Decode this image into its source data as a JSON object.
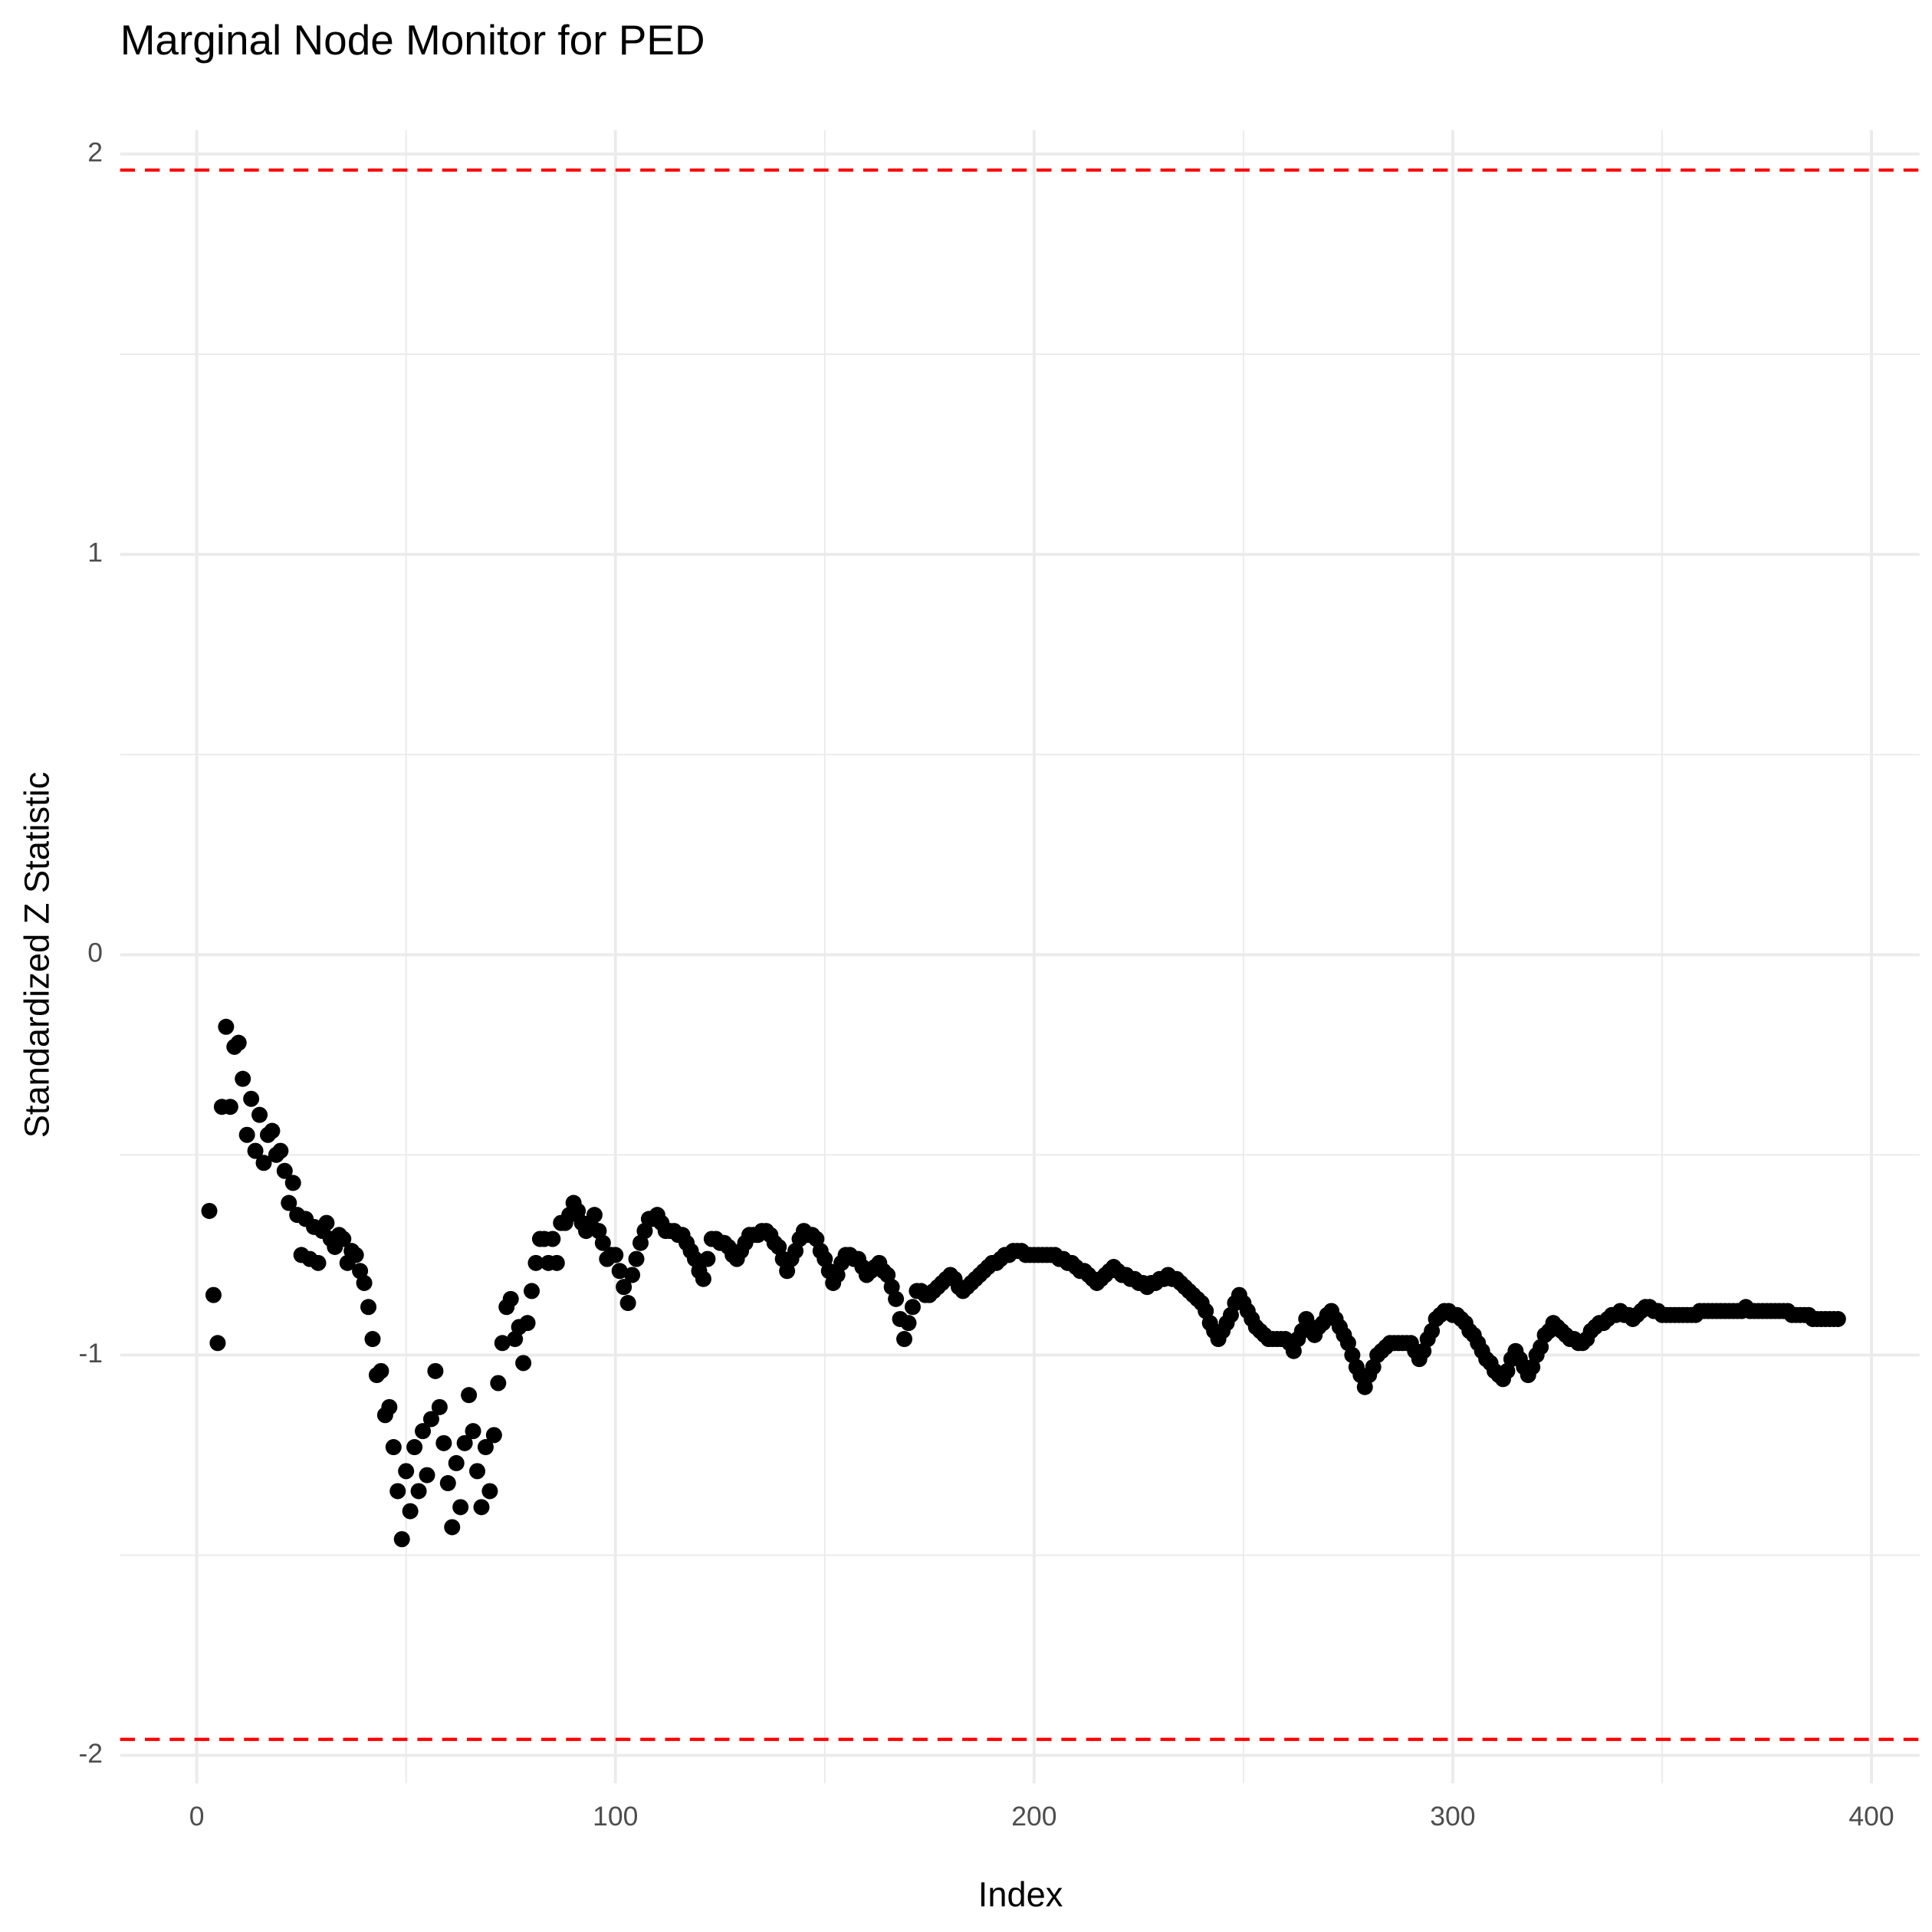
{
  "chart_data": {
    "type": "scatter",
    "title": "Marginal Node Monitor for PED",
    "x_label": "Index",
    "y_label": "Standardized Z Statistic",
    "xlim": [
      -18.3,
      411.5
    ],
    "ylim": [
      -2.07,
      2.06
    ],
    "xticks": [
      0,
      100,
      200,
      300,
      400
    ],
    "yticks": [
      -2,
      -1,
      0,
      1,
      2
    ],
    "grid": true,
    "color": "#000000",
    "reference_lines": [
      1.96,
      -1.96
    ],
    "reference_color": "#ff0000",
    "x": [
      3,
      4,
      5,
      6,
      7,
      8,
      9,
      10,
      11,
      12,
      13,
      14,
      15,
      16,
      17,
      18,
      19,
      20,
      21,
      22,
      23,
      24,
      25,
      26,
      27,
      28,
      29,
      30,
      31,
      32,
      33,
      34,
      35,
      36,
      37,
      38,
      39,
      40,
      41,
      42,
      43,
      44,
      45,
      46,
      47,
      48,
      49,
      50,
      51,
      52,
      53,
      54,
      55,
      56,
      57,
      58,
      59,
      60,
      61,
      62,
      63,
      64,
      65,
      66,
      67,
      68,
      69,
      70,
      71,
      72,
      73,
      74,
      75,
      76,
      77,
      78,
      79,
      80,
      81,
      82,
      83,
      84,
      85,
      86,
      87,
      88,
      89,
      90,
      91,
      92,
      93,
      94,
      95,
      96,
      97,
      98,
      99,
      100,
      101,
      102,
      103,
      104,
      105,
      106,
      107,
      108,
      109,
      110,
      111,
      112,
      113,
      114,
      115,
      116,
      117,
      118,
      119,
      120,
      121,
      122,
      123,
      124,
      125,
      126,
      127,
      128,
      129,
      130,
      131,
      132,
      133,
      134,
      135,
      136,
      137,
      138,
      139,
      140,
      141,
      142,
      143,
      144,
      145,
      146,
      147,
      148,
      149,
      150,
      151,
      152,
      153,
      154,
      155,
      156,
      157,
      158,
      159,
      160,
      161,
      162,
      163,
      164,
      165,
      166,
      167,
      168,
      169,
      170,
      171,
      172,
      173,
      174,
      175,
      176,
      177,
      178,
      179,
      180,
      181,
      182,
      183,
      184,
      185,
      186,
      187,
      188,
      189,
      190,
      191,
      192,
      193,
      194,
      195,
      196,
      197,
      198,
      199,
      200,
      201,
      202,
      203,
      204,
      205,
      206,
      207,
      208,
      209,
      210,
      211,
      212,
      213,
      214,
      215,
      216,
      217,
      218,
      219,
      220,
      221,
      222,
      223,
      224,
      225,
      226,
      227,
      228,
      229,
      230,
      231,
      232,
      233,
      234,
      235,
      236,
      237,
      238,
      239,
      240,
      241,
      242,
      243,
      244,
      245,
      246,
      247,
      248,
      249,
      250,
      251,
      252,
      253,
      254,
      255,
      256,
      257,
      258,
      259,
      260,
      261,
      262,
      263,
      264,
      265,
      266,
      267,
      268,
      269,
      270,
      271,
      272,
      273,
      274,
      275,
      276,
      277,
      278,
      279,
      280,
      281,
      282,
      283,
      284,
      285,
      286,
      287,
      288,
      289,
      290,
      291,
      292,
      293,
      294,
      295,
      296,
      297,
      298,
      299,
      300,
      301,
      302,
      303,
      304,
      305,
      306,
      307,
      308,
      309,
      310,
      311,
      312,
      313,
      314,
      315,
      316,
      317,
      318,
      319,
      320,
      321,
      322,
      323,
      324,
      325,
      326,
      327,
      328,
      329,
      330,
      331,
      332,
      333,
      334,
      335,
      336,
      337,
      338,
      339,
      340,
      341,
      342,
      343,
      344,
      345,
      346,
      347,
      348,
      349,
      350,
      351,
      352,
      353,
      354,
      355,
      356,
      357,
      358,
      359,
      360,
      361,
      362,
      363,
      364,
      365,
      366,
      367,
      368,
      369,
      370,
      371,
      372,
      373,
      374,
      375,
      376,
      377,
      378,
      379,
      380,
      381,
      382,
      383,
      384,
      385,
      386,
      387,
      388,
      389,
      390,
      391,
      392
    ],
    "values": [
      -0.64,
      -0.85,
      -0.97,
      -0.38,
      -0.18,
      -0.38,
      -0.23,
      -0.22,
      -0.31,
      -0.45,
      -0.36,
      -0.49,
      -0.4,
      -0.52,
      -0.45,
      -0.44,
      -0.5,
      -0.49,
      -0.54,
      -0.62,
      -0.57,
      -0.65,
      -0.75,
      -0.66,
      -0.76,
      -0.68,
      -0.77,
      -0.69,
      -0.67,
      -0.71,
      -0.73,
      -0.7,
      -0.71,
      -0.77,
      -0.74,
      -0.75,
      -0.79,
      -0.82,
      -0.88,
      -0.96,
      -1.05,
      -1.04,
      -1.15,
      -1.13,
      -1.23,
      -1.34,
      -1.46,
      -1.29,
      -1.39,
      -1.23,
      -1.34,
      -1.19,
      -1.3,
      -1.16,
      -1.04,
      -1.13,
      -1.22,
      -1.32,
      -1.43,
      -1.27,
      -1.38,
      -1.22,
      -1.1,
      -1.19,
      -1.29,
      -1.38,
      -1.23,
      -1.34,
      -1.2,
      -1.07,
      -0.97,
      -0.88,
      -0.86,
      -0.96,
      -0.93,
      -1.02,
      -0.92,
      -0.84,
      -0.77,
      -0.71,
      -0.71,
      -0.77,
      -0.71,
      -0.77,
      -0.67,
      -0.67,
      -0.65,
      -0.62,
      -0.64,
      -0.67,
      -0.69,
      -0.67,
      -0.65,
      -0.69,
      -0.72,
      -0.76,
      -0.75,
      -0.75,
      -0.79,
      -0.83,
      -0.87,
      -0.8,
      -0.76,
      -0.72,
      -0.69,
      -0.66,
      -0.66,
      -0.65,
      -0.67,
      -0.69,
      -0.69,
      -0.69,
      -0.7,
      -0.7,
      -0.72,
      -0.74,
      -0.76,
      -0.79,
      -0.81,
      -0.76,
      -0.71,
      -0.71,
      -0.72,
      -0.72,
      -0.73,
      -0.75,
      -0.76,
      -0.74,
      -0.72,
      -0.7,
      -0.7,
      -0.7,
      -0.69,
      -0.69,
      -0.7,
      -0.72,
      -0.73,
      -0.76,
      -0.79,
      -0.76,
      -0.74,
      -0.71,
      -0.69,
      -0.7,
      -0.7,
      -0.71,
      -0.74,
      -0.76,
      -0.79,
      -0.82,
      -0.8,
      -0.77,
      -0.75,
      -0.75,
      -0.76,
      -0.76,
      -0.78,
      -0.8,
      -0.79,
      -0.78,
      -0.77,
      -0.79,
      -0.8,
      -0.83,
      -0.86,
      -0.91,
      -0.96,
      -0.92,
      -0.88,
      -0.84,
      -0.84,
      -0.85,
      -0.85,
      -0.84,
      -0.83,
      -0.82,
      -0.81,
      -0.8,
      -0.81,
      -0.83,
      -0.84,
      -0.83,
      -0.82,
      -0.81,
      -0.8,
      -0.79,
      -0.78,
      -0.77,
      -0.77,
      -0.76,
      -0.75,
      -0.75,
      -0.74,
      -0.74,
      -0.74,
      -0.75,
      -0.75,
      -0.75,
      -0.75,
      -0.75,
      -0.75,
      -0.75,
      -0.75,
      -0.76,
      -0.76,
      -0.77,
      -0.77,
      -0.78,
      -0.79,
      -0.79,
      -0.8,
      -0.81,
      -0.82,
      -0.81,
      -0.8,
      -0.79,
      -0.78,
      -0.79,
      -0.8,
      -0.8,
      -0.81,
      -0.81,
      -0.82,
      -0.82,
      -0.83,
      -0.82,
      -0.82,
      -0.81,
      -0.81,
      -0.8,
      -0.81,
      -0.81,
      -0.82,
      -0.83,
      -0.84,
      -0.85,
      -0.86,
      -0.87,
      -0.89,
      -0.92,
      -0.94,
      -0.96,
      -0.94,
      -0.92,
      -0.9,
      -0.87,
      -0.85,
      -0.87,
      -0.89,
      -0.91,
      -0.93,
      -0.94,
      -0.95,
      -0.96,
      -0.96,
      -0.96,
      -0.96,
      -0.96,
      -0.97,
      -0.99,
      -0.96,
      -0.94,
      -0.91,
      -0.93,
      -0.95,
      -0.93,
      -0.92,
      -0.9,
      -0.89,
      -0.91,
      -0.93,
      -0.95,
      -0.97,
      -1.0,
      -1.03,
      -1.05,
      -1.08,
      -1.05,
      -1.03,
      -1.0,
      -0.99,
      -0.98,
      -0.97,
      -0.97,
      -0.97,
      -0.97,
      -0.97,
      -0.97,
      -0.99,
      -1.01,
      -0.99,
      -0.96,
      -0.94,
      -0.91,
      -0.9,
      -0.89,
      -0.89,
      -0.9,
      -0.9,
      -0.91,
      -0.92,
      -0.94,
      -0.95,
      -0.97,
      -0.99,
      -1.01,
      -1.02,
      -1.04,
      -1.05,
      -1.06,
      -1.04,
      -1.01,
      -0.99,
      -1.01,
      -1.03,
      -1.05,
      -1.03,
      -1.0,
      -0.98,
      -0.95,
      -0.94,
      -0.92,
      -0.93,
      -0.94,
      -0.95,
      -0.96,
      -0.96,
      -0.97,
      -0.97,
      -0.96,
      -0.94,
      -0.93,
      -0.92,
      -0.92,
      -0.91,
      -0.9,
      -0.9,
      -0.89,
      -0.9,
      -0.9,
      -0.91,
      -0.9,
      -0.89,
      -0.88,
      -0.88,
      -0.89,
      -0.89,
      -0.9,
      -0.9,
      -0.9,
      -0.9,
      -0.9,
      -0.9,
      -0.9,
      -0.9,
      -0.9,
      -0.89,
      -0.89,
      -0.89,
      -0.89,
      -0.89,
      -0.89,
      -0.89,
      -0.89,
      -0.89,
      -0.89,
      -0.89,
      -0.88,
      -0.89,
      -0.89,
      -0.89,
      -0.89,
      -0.89,
      -0.89,
      -0.89,
      -0.89,
      -0.89,
      -0.89,
      -0.9,
      -0.9,
      -0.9,
      -0.9,
      -0.9,
      -0.91,
      -0.91,
      -0.91,
      -0.91,
      -0.91,
      -0.91,
      -0.91
    ]
  }
}
